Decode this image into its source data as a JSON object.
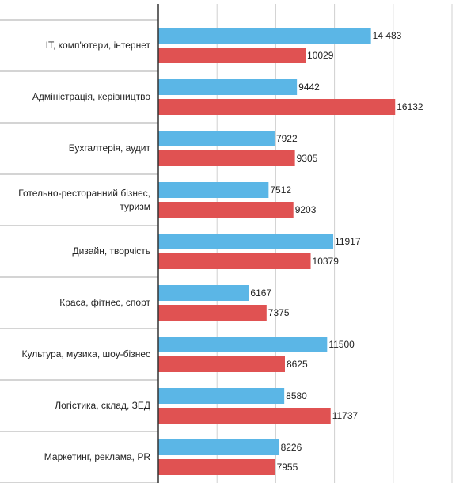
{
  "chart_data": {
    "type": "hbar",
    "categories": [
      "IT, комп'ютери, інтернет",
      "Адміністрація, керівництво",
      "Бухгалтерія, аудит",
      "Готельно-ресторанний бізнес, туризм",
      "Дизайн, творчість",
      "Краса, фітнес, спорт",
      "Культура, музика, шоу-бізнес",
      "Логістика, склад, ЗЕД",
      "Маркетинг, реклама, PR"
    ],
    "series": [
      {
        "color": "#5bb6e6",
        "values": [
          14483,
          9442,
          7922,
          7512,
          11917,
          6167,
          11500,
          8580,
          8226
        ],
        "value_labels": [
          "14 483",
          "9442",
          "7922",
          "7512",
          "11917",
          "6167",
          "11500",
          "8580",
          "8226"
        ]
      },
      {
        "color": "#e05252",
        "values": [
          10029,
          16132,
          9305,
          9203,
          10379,
          7375,
          8625,
          11737,
          7955
        ]
      }
    ],
    "xlim": [
      0,
      20000
    ],
    "xticks": [
      0,
      4000,
      8000,
      12000,
      16000,
      20000
    ],
    "grid": true
  }
}
